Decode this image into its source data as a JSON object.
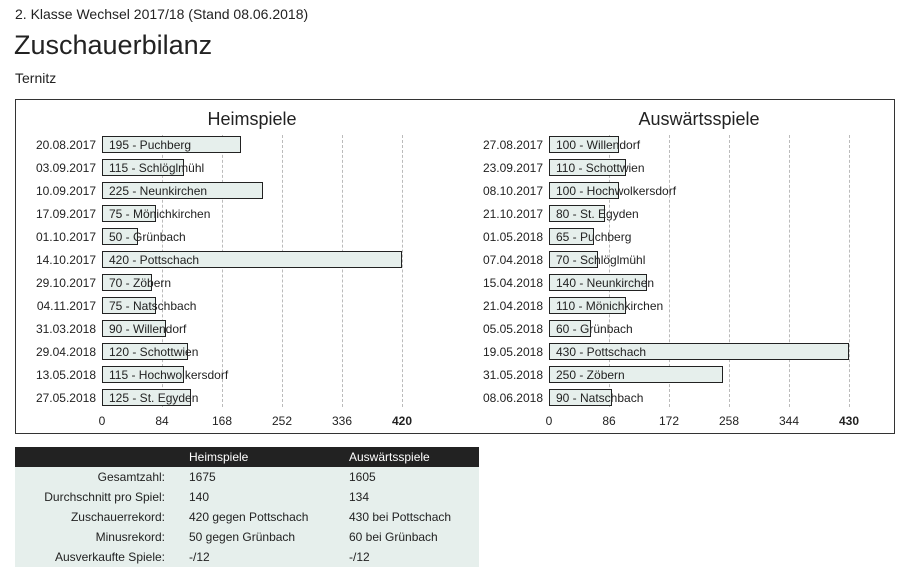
{
  "header": {
    "subtitle": "2. Klasse Wechsel 2017/18 (Stand 08.06.2018)",
    "title": "Zuschauerbilanz",
    "team": "Ternitz"
  },
  "chart_data": [
    {
      "type": "bar",
      "title": "Heimspiele",
      "xlim": [
        0,
        420
      ],
      "ticks": [
        "0",
        "84",
        "168",
        "252",
        "336",
        "420"
      ],
      "rows": [
        {
          "date": "20.08.2017",
          "value": 195,
          "label": "195 - Puchberg"
        },
        {
          "date": "03.09.2017",
          "value": 115,
          "label": "115 - Schlöglmühl"
        },
        {
          "date": "10.09.2017",
          "value": 225,
          "label": "225 - Neunkirchen"
        },
        {
          "date": "17.09.2017",
          "value": 75,
          "label": "75 - Mönichkirchen"
        },
        {
          "date": "01.10.2017",
          "value": 50,
          "label": "50 - Grünbach"
        },
        {
          "date": "14.10.2017",
          "value": 420,
          "label": "420 - Pottschach"
        },
        {
          "date": "29.10.2017",
          "value": 70,
          "label": "70 - Zöbern"
        },
        {
          "date": "04.11.2017",
          "value": 75,
          "label": "75 - Natschbach"
        },
        {
          "date": "31.03.2018",
          "value": 90,
          "label": "90 - Willendorf"
        },
        {
          "date": "29.04.2018",
          "value": 120,
          "label": "120 - Schottwien"
        },
        {
          "date": "13.05.2018",
          "value": 115,
          "label": "115 - Hochwolkersdorf"
        },
        {
          "date": "27.05.2018",
          "value": 125,
          "label": "125 - St. Egyden"
        }
      ]
    },
    {
      "type": "bar",
      "title": "Auswärtsspiele",
      "xlim": [
        0,
        430
      ],
      "ticks": [
        "0",
        "86",
        "172",
        "258",
        "344",
        "430"
      ],
      "rows": [
        {
          "date": "27.08.2017",
          "value": 100,
          "label": "100 - Willendorf"
        },
        {
          "date": "23.09.2017",
          "value": 110,
          "label": "110 - Schottwien"
        },
        {
          "date": "08.10.2017",
          "value": 100,
          "label": "100 - Hochwolkersdorf"
        },
        {
          "date": "21.10.2017",
          "value": 80,
          "label": "80 - St. Egyden"
        },
        {
          "date": "01.05.2018",
          "value": 65,
          "label": "65 - Puchberg"
        },
        {
          "date": "07.04.2018",
          "value": 70,
          "label": "70 - Schlöglmühl"
        },
        {
          "date": "15.04.2018",
          "value": 140,
          "label": "140 - Neunkirchen"
        },
        {
          "date": "21.04.2018",
          "value": 110,
          "label": "110 - Mönichkirchen"
        },
        {
          "date": "05.05.2018",
          "value": 60,
          "label": "60 - Grünbach"
        },
        {
          "date": "19.05.2018",
          "value": 430,
          "label": "430 - Pottschach"
        },
        {
          "date": "31.05.2018",
          "value": 250,
          "label": "250 - Zöbern"
        },
        {
          "date": "08.06.2018",
          "value": 90,
          "label": "90 - Natschbach"
        }
      ]
    }
  ],
  "summary": {
    "headers": [
      "",
      "Heimspiele",
      "Auswärtsspiele"
    ],
    "rows": [
      [
        "Gesamtzahl:",
        "1675",
        "1605"
      ],
      [
        "Durchschnitt pro Spiel:",
        "140",
        "134"
      ],
      [
        "Zuschauerrekord:",
        "420 gegen Pottschach",
        "430 bei Pottschach"
      ],
      [
        "Minusrekord:",
        "50 gegen Grünbach",
        "60 bei Grünbach"
      ],
      [
        "Ausverkaufte Spiele:",
        "-/12",
        "-/12"
      ]
    ]
  }
}
